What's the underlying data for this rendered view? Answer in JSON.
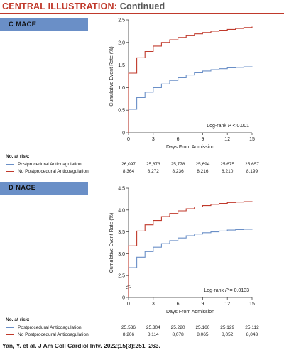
{
  "header": {
    "title": "CENTRAL ILLUSTRATION:",
    "subtitle": "Continued"
  },
  "colors": {
    "anticoag": "#6a8fc7",
    "no_anticoag": "#c0392b",
    "panel_tag": "#6a8fc7",
    "header_red": "#c0392b"
  },
  "risk_title": "No. at risk:",
  "citation": "Yan, Y. et al. J Am Coll Cardiol Intv. 2022;15(3):251–263.",
  "chart_data": [
    {
      "type": "line",
      "panel_label": "C  MACE",
      "ylabel": "Cumulative Event Rate (%)",
      "xlabel": "Days From Admission",
      "xlim": [
        0,
        15
      ],
      "ylim": [
        0,
        2.5
      ],
      "xticks": [
        0,
        3,
        6,
        9,
        12,
        15
      ],
      "yticks": [
        0,
        0.5,
        1.0,
        1.5,
        2.0,
        2.5
      ],
      "ytick_labels": [
        "0",
        "0.5",
        "1.0",
        "1.5",
        "2.0",
        "2.5"
      ],
      "annotation": "Log-rank P < 0.001",
      "series": [
        {
          "name": "Postprocedural Anticoagulation",
          "color": "#6a8fc7",
          "x": [
            0,
            1,
            2,
            3,
            4,
            5,
            6,
            7,
            8,
            9,
            10,
            11,
            12,
            13,
            14,
            15
          ],
          "y": [
            0.52,
            0.78,
            0.9,
            1.0,
            1.08,
            1.16,
            1.22,
            1.28,
            1.33,
            1.37,
            1.4,
            1.42,
            1.44,
            1.45,
            1.46,
            1.47
          ]
        },
        {
          "name": "No Postprocedural Anticoagulation",
          "color": "#c0392b",
          "x": [
            0,
            1,
            2,
            3,
            4,
            5,
            6,
            7,
            8,
            9,
            10,
            11,
            12,
            13,
            14,
            15
          ],
          "y": [
            1.32,
            1.66,
            1.8,
            1.92,
            2.0,
            2.06,
            2.11,
            2.15,
            2.19,
            2.22,
            2.25,
            2.27,
            2.29,
            2.31,
            2.33,
            2.35
          ]
        }
      ],
      "at_risk": [
        {
          "name": "Postprocedural Anticoagulation",
          "values": [
            "26,097",
            "25,873",
            "25,778",
            "25,694",
            "25,675",
            "25,657"
          ]
        },
        {
          "name": "No Postprocedural Anticoagulation",
          "values": [
            "8,364",
            "8,272",
            "8,236",
            "8,216",
            "8,210",
            "8,199"
          ]
        }
      ]
    },
    {
      "type": "line",
      "panel_label": "D  NACE",
      "ylabel": "Cumulative Event Rate (%)",
      "xlabel": "Days From Admission",
      "xlim": [
        0,
        15
      ],
      "ylim": [
        0,
        4.5
      ],
      "xticks": [
        0,
        3,
        6,
        9,
        12,
        15
      ],
      "yticks": [
        0,
        2.5,
        3.0,
        3.5,
        4.0,
        4.5
      ],
      "ytick_labels": [
        "0",
        "2.5",
        "3.0",
        "3.5",
        "4.0",
        "4.5"
      ],
      "annotation": "Log-rank P = 0.0133",
      "series": [
        {
          "name": "Postprocedural Anticoagulation",
          "color": "#6a8fc7",
          "x": [
            0,
            1,
            2,
            3,
            4,
            5,
            6,
            7,
            8,
            9,
            10,
            11,
            12,
            13,
            14,
            15
          ],
          "y": [
            2.68,
            2.92,
            3.05,
            3.15,
            3.23,
            3.3,
            3.36,
            3.41,
            3.45,
            3.48,
            3.5,
            3.52,
            3.54,
            3.55,
            3.56,
            3.57
          ]
        },
        {
          "name": "No Postprocedural Anticoagulation",
          "color": "#c0392b",
          "x": [
            0,
            1,
            2,
            3,
            4,
            5,
            6,
            7,
            8,
            9,
            10,
            11,
            12,
            13,
            14,
            15
          ],
          "y": [
            3.18,
            3.52,
            3.66,
            3.76,
            3.85,
            3.92,
            3.98,
            4.03,
            4.07,
            4.1,
            4.13,
            4.15,
            4.17,
            4.18,
            4.19,
            4.2
          ]
        }
      ],
      "at_risk": [
        {
          "name": "Postprocedural Anticoagulation",
          "values": [
            "25,536",
            "25,304",
            "25,220",
            "25,160",
            "25,129",
            "25,112"
          ]
        },
        {
          "name": "No Postprocedural Anticoagulation",
          "values": [
            "8,206",
            "8,114",
            "8,078",
            "8,065",
            "8,052",
            "8,043"
          ]
        }
      ]
    }
  ]
}
